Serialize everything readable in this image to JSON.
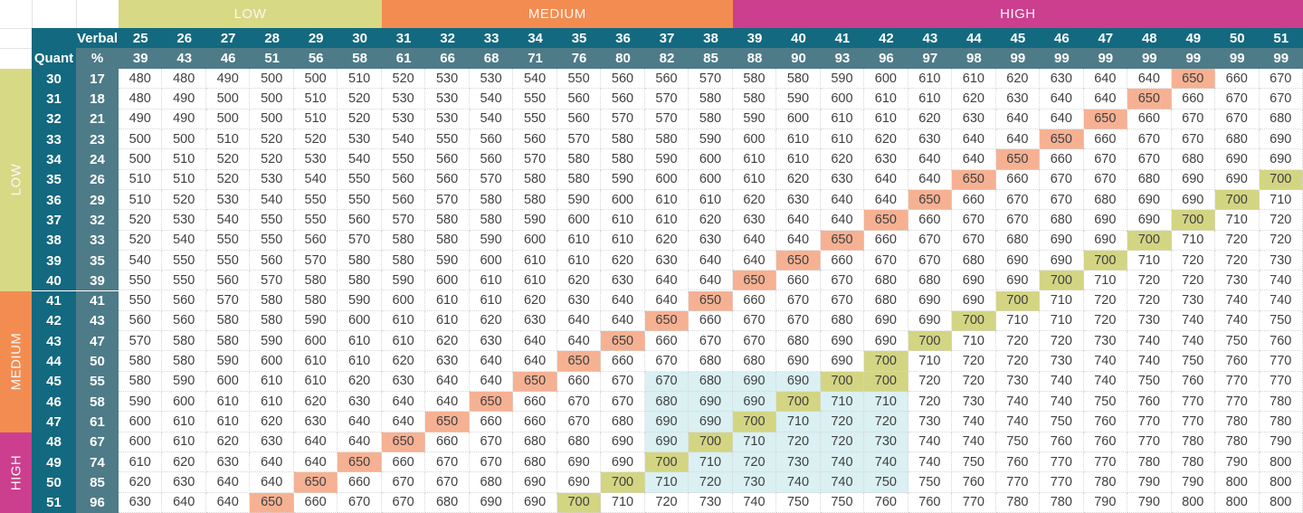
{
  "title_labels": {
    "verbal": "Verbal",
    "quant": "Quant",
    "percent": "%"
  },
  "colors": {
    "low": "#d7d985",
    "medium": "#f38c50",
    "high": "#cc3f8f",
    "header_dark": "#13697f",
    "header_mid": "#4e7b88",
    "score_650": "#f6b193",
    "score_700": "#d3d583",
    "highlight_zone": "#daf0f2"
  },
  "verbal_bands": [
    {
      "label": "LOW",
      "start": 0,
      "span": 6
    },
    {
      "label": "MEDIUM",
      "start": 6,
      "span": 8
    },
    {
      "label": "HIGH",
      "start": 14,
      "span": 13
    }
  ],
  "quant_bands": [
    {
      "label": "LOW",
      "start": 0,
      "span": 11
    },
    {
      "label": "MEDIUM",
      "start": 11,
      "span": 7
    },
    {
      "label": "HIGH",
      "start": 18,
      "span": 4
    }
  ],
  "verbal_scores": [
    25,
    26,
    27,
    28,
    29,
    30,
    31,
    32,
    33,
    34,
    35,
    36,
    37,
    38,
    39,
    40,
    41,
    42,
    43,
    44,
    45,
    46,
    47,
    48,
    49,
    50,
    51
  ],
  "verbal_percentiles": [
    39,
    43,
    46,
    51,
    56,
    58,
    61,
    66,
    68,
    71,
    76,
    80,
    82,
    85,
    88,
    90,
    93,
    96,
    97,
    98,
    99,
    99,
    99,
    99,
    99,
    99,
    99
  ],
  "quant_scores": [
    30,
    31,
    32,
    33,
    34,
    35,
    36,
    37,
    38,
    39,
    40,
    41,
    42,
    43,
    44,
    45,
    46,
    47,
    48,
    49,
    50,
    51
  ],
  "quant_percentiles": [
    17,
    18,
    21,
    23,
    24,
    26,
    29,
    32,
    33,
    35,
    39,
    41,
    43,
    47,
    50,
    55,
    58,
    61,
    67,
    74,
    85,
    96
  ],
  "highlight_zone": {
    "row_start": 15,
    "row_end": 20,
    "col_start": 12,
    "col_end": 17
  },
  "grid": [
    [
      480,
      480,
      490,
      500,
      500,
      510,
      520,
      530,
      530,
      540,
      550,
      560,
      560,
      570,
      580,
      580,
      590,
      600,
      610,
      610,
      620,
      630,
      640,
      640,
      650,
      660,
      670
    ],
    [
      480,
      490,
      500,
      500,
      510,
      520,
      530,
      530,
      540,
      550,
      560,
      560,
      570,
      580,
      580,
      590,
      600,
      610,
      610,
      620,
      630,
      640,
      640,
      650,
      660,
      670,
      670
    ],
    [
      490,
      490,
      500,
      500,
      510,
      520,
      530,
      530,
      540,
      550,
      560,
      570,
      570,
      580,
      590,
      600,
      610,
      610,
      620,
      630,
      640,
      640,
      650,
      660,
      670,
      670,
      680
    ],
    [
      500,
      500,
      510,
      520,
      520,
      530,
      540,
      550,
      560,
      560,
      570,
      580,
      580,
      590,
      600,
      610,
      610,
      620,
      630,
      640,
      640,
      650,
      660,
      670,
      670,
      680,
      690
    ],
    [
      500,
      510,
      520,
      520,
      530,
      540,
      550,
      560,
      560,
      570,
      580,
      580,
      590,
      600,
      610,
      610,
      620,
      630,
      640,
      640,
      650,
      660,
      670,
      670,
      680,
      690,
      690
    ],
    [
      510,
      510,
      520,
      530,
      540,
      550,
      560,
      560,
      570,
      580,
      580,
      590,
      600,
      600,
      610,
      620,
      630,
      640,
      640,
      650,
      660,
      670,
      670,
      680,
      690,
      690,
      700
    ],
    [
      510,
      520,
      530,
      540,
      550,
      550,
      560,
      570,
      580,
      580,
      590,
      600,
      610,
      610,
      620,
      630,
      640,
      640,
      650,
      660,
      670,
      670,
      680,
      690,
      690,
      700,
      710
    ],
    [
      520,
      530,
      540,
      550,
      550,
      560,
      570,
      580,
      580,
      590,
      600,
      610,
      610,
      620,
      630,
      640,
      640,
      650,
      660,
      670,
      670,
      680,
      690,
      690,
      700,
      710,
      720
    ],
    [
      520,
      540,
      550,
      550,
      560,
      570,
      580,
      580,
      590,
      600,
      610,
      610,
      620,
      630,
      640,
      640,
      650,
      660,
      670,
      670,
      680,
      690,
      690,
      700,
      710,
      720,
      720
    ],
    [
      540,
      550,
      550,
      560,
      570,
      580,
      580,
      590,
      600,
      610,
      610,
      620,
      630,
      640,
      640,
      650,
      660,
      670,
      670,
      680,
      690,
      690,
      700,
      710,
      720,
      720,
      730
    ],
    [
      550,
      550,
      560,
      570,
      580,
      580,
      590,
      600,
      610,
      610,
      620,
      630,
      640,
      640,
      650,
      660,
      670,
      680,
      680,
      690,
      690,
      700,
      710,
      720,
      720,
      730,
      740
    ],
    [
      550,
      560,
      570,
      580,
      580,
      590,
      600,
      610,
      610,
      620,
      630,
      640,
      640,
      650,
      660,
      670,
      670,
      680,
      690,
      690,
      700,
      710,
      720,
      720,
      730,
      740,
      740
    ],
    [
      560,
      560,
      580,
      580,
      590,
      600,
      610,
      610,
      620,
      630,
      640,
      640,
      650,
      660,
      670,
      670,
      680,
      690,
      690,
      700,
      710,
      710,
      720,
      730,
      740,
      740,
      750
    ],
    [
      570,
      580,
      580,
      590,
      600,
      610,
      610,
      620,
      630,
      640,
      640,
      650,
      660,
      670,
      670,
      680,
      690,
      690,
      700,
      710,
      720,
      720,
      730,
      740,
      740,
      750,
      760
    ],
    [
      580,
      580,
      590,
      600,
      610,
      610,
      620,
      630,
      640,
      640,
      650,
      660,
      670,
      680,
      680,
      690,
      690,
      700,
      710,
      720,
      720,
      730,
      740,
      740,
      750,
      760,
      770
    ],
    [
      580,
      590,
      600,
      610,
      610,
      620,
      630,
      640,
      640,
      650,
      660,
      670,
      670,
      680,
      690,
      690,
      700,
      700,
      720,
      720,
      730,
      740,
      740,
      750,
      760,
      770,
      770
    ],
    [
      590,
      600,
      610,
      610,
      620,
      630,
      640,
      640,
      650,
      660,
      670,
      670,
      680,
      690,
      690,
      700,
      710,
      710,
      720,
      730,
      740,
      740,
      750,
      760,
      770,
      770,
      780
    ],
    [
      600,
      610,
      610,
      620,
      630,
      640,
      640,
      650,
      660,
      660,
      670,
      680,
      690,
      690,
      700,
      710,
      720,
      720,
      730,
      740,
      740,
      750,
      760,
      770,
      770,
      780,
      780
    ],
    [
      600,
      610,
      620,
      630,
      640,
      640,
      650,
      660,
      670,
      680,
      680,
      690,
      690,
      700,
      710,
      720,
      720,
      730,
      740,
      740,
      750,
      760,
      760,
      770,
      780,
      780,
      790
    ],
    [
      610,
      620,
      630,
      640,
      640,
      650,
      660,
      670,
      670,
      680,
      690,
      690,
      700,
      710,
      720,
      730,
      740,
      740,
      740,
      750,
      760,
      770,
      770,
      780,
      780,
      790,
      800
    ],
    [
      620,
      630,
      640,
      640,
      650,
      660,
      670,
      670,
      680,
      690,
      690,
      700,
      710,
      720,
      730,
      740,
      740,
      750,
      750,
      760,
      770,
      770,
      780,
      790,
      790,
      800,
      800
    ],
    [
      630,
      640,
      640,
      650,
      660,
      670,
      670,
      680,
      690,
      690,
      700,
      710,
      720,
      730,
      740,
      750,
      750,
      760,
      760,
      770,
      780,
      780,
      790,
      790,
      800,
      800,
      800
    ]
  ]
}
